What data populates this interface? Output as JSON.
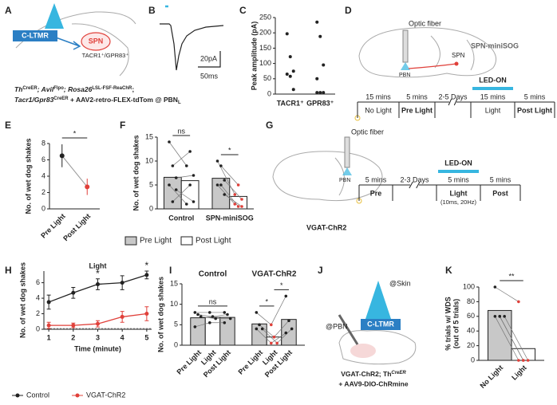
{
  "diagrams": {
    "A": {
      "label": "A",
      "neuron": "C-LTMR",
      "target": "SPN",
      "target_note": "TACR1⁺/GPR83⁺",
      "genotype": [
        [
          {
            "text": "Th"
          },
          {
            "text": "CreER",
            "sup": true
          },
          {
            "text": "; Avil"
          },
          {
            "text": "Flpo",
            "sup": true
          },
          {
            "text": "; Rosa26"
          },
          {
            "text": "LSL-FSF-ReaChR",
            "sup": true
          },
          {
            "text": ";"
          }
        ],
        [
          {
            "text": "Tacr1/Gpr83"
          },
          {
            "text": "CreER",
            "sup": true
          },
          {
            "text": " + AAV2-retro-FLEX-tdTom @ PBN"
          },
          {
            "text": "L",
            "sub": true
          }
        ]
      ]
    },
    "B": {
      "label": "B",
      "scale_y": "20pA",
      "scale_x": "50ms"
    },
    "D": {
      "label": "D",
      "fiber": "Optic fiber",
      "region": "PBN",
      "cell": "SPN",
      "line": "SPN-miniSOG",
      "led": "LED-ON",
      "led_index": 3,
      "timeline": [
        {
          "duration": "15 mins",
          "phase": "No Light"
        },
        {
          "duration": "5 mins",
          "phase": "Pre Light",
          "bold": true
        },
        {
          "duration": "2-5 Days"
        },
        {
          "duration": "15 mins",
          "phase": "Light"
        },
        {
          "duration": "5 mins",
          "phase": "Post Light",
          "bold": true
        }
      ]
    },
    "G": {
      "label": "G",
      "fiber": "Optic fiber",
      "region": "PBN",
      "line": "VGAT-ChR2",
      "led": "LED-ON",
      "led_index": 2,
      "timeline": [
        {
          "duration": "5 mins",
          "phase": "Pre",
          "bold": true
        },
        {
          "duration": "2-3 Days"
        },
        {
          "duration": "5 mins",
          "phase": "Light",
          "bold": true,
          "note": "(10ms, 20Hz)"
        },
        {
          "duration": "5 mins",
          "phase": "Post",
          "bold": true
        }
      ]
    },
    "J": {
      "label": "J",
      "skin": "@Skin",
      "neuron": "C-LTMR",
      "region": "@PBN",
      "genotype_line1": "VGAT-ChR2; Th",
      "genotype_sup": "CreER",
      "genotype_line2": "+ AAV9-DIO-ChRmine"
    }
  },
  "chart_data": [
    {
      "type": "strip",
      "label": "C",
      "y_label": "Peak amplitude (pA)",
      "categories": [
        "TACR1⁺",
        "GPR83⁺"
      ],
      "values": [
        [
          197,
          122,
          75,
          65,
          58,
          15
        ],
        [
          235,
          188,
          95,
          50,
          5,
          5,
          5
        ]
      ],
      "color": "#222222",
      "ylim": [
        0,
        250
      ],
      "yticks": [
        0,
        50,
        100,
        150,
        200,
        250
      ]
    },
    {
      "type": "line",
      "label": "E",
      "y_label": "No. of wet dog shakes",
      "categories": [
        "Pre Light",
        "Post Light"
      ],
      "values": [
        6.5,
        2.7
      ],
      "errors": [
        1.4,
        1.0
      ],
      "colors": [
        "#222222",
        "#e0403a"
      ],
      "ylim": [
        0,
        8
      ],
      "yticks": [
        0,
        2,
        4,
        6,
        8
      ],
      "significance": [
        {
          "pair": [
            0,
            1
          ],
          "label": "*"
        }
      ]
    },
    {
      "type": "bar",
      "label": "F",
      "y_label": "No. of wet dog shakes",
      "groups": [
        "Control",
        "SPN-miniSOG"
      ],
      "group_position": "bottom",
      "categories": [
        "Pre Light",
        "Post Light"
      ],
      "category_display": "legend",
      "fills": [
        "#c8c8c8",
        "#ffffff"
      ],
      "values": [
        [
          6.6,
          5.9
        ],
        [
          6.4,
          2.6
        ]
      ],
      "points": [
        [
          [
            14,
            9,
            6.5,
            5,
            1.5,
            4
          ],
          [
            9,
            12,
            7,
            1,
            5,
            1.5
          ]
        ],
        [
          [
            10,
            9,
            6,
            5,
            5,
            3
          ],
          [
            3,
            5,
            2,
            1,
            0.5,
            0.5
          ]
        ]
      ],
      "point_colors": [
        [
          "#222222",
          "#222222"
        ],
        [
          "#222222",
          "#e0403a"
        ]
      ],
      "ylim": [
        0,
        15
      ],
      "yticks": [
        0,
        5,
        10,
        15
      ],
      "significance": [
        {
          "group": 0,
          "pair": [
            0,
            1
          ],
          "label": "ns"
        },
        {
          "group": 1,
          "pair": [
            0,
            1
          ],
          "label": "*"
        }
      ]
    },
    {
      "type": "line",
      "label": "H",
      "title": "Light",
      "x_label": "Time (minute)",
      "y_label": "No. of wet dog shakes",
      "x": [
        1,
        2,
        3,
        4,
        5
      ],
      "xlim": [
        0.8,
        5.2
      ],
      "xticks": [
        1,
        2,
        3,
        4,
        5
      ],
      "ylim": [
        0,
        7.5
      ],
      "yticks": [
        0,
        2,
        4,
        6
      ],
      "series": [
        {
          "name": "Control",
          "color": "#222222",
          "values": [
            3.5,
            4.7,
            5.8,
            6.0,
            7.0
          ],
          "errors": [
            0.9,
            0.7,
            0.7,
            0.9,
            0.5
          ]
        },
        {
          "name": "VGAT-ChR2",
          "color": "#e0403a",
          "values": [
            0.5,
            0.5,
            0.7,
            1.6,
            2.0
          ],
          "errors": [
            0.4,
            0.3,
            0.4,
            0.7,
            0.9
          ]
        }
      ],
      "significance": [
        {
          "x": 3,
          "label": "*"
        },
        {
          "x": 5,
          "label": "*"
        }
      ],
      "legend": "bottom"
    },
    {
      "type": "bar",
      "label": "I",
      "y_label": "No. of wet dog shakes",
      "groups": [
        "Control",
        "VGAT-ChR2"
      ],
      "group_position": "top",
      "categories": [
        "Pre Light",
        "Light",
        "Post Light"
      ],
      "category_display": "rotated",
      "fills": [
        "#c8c8c8",
        "#ffffff",
        "#c8c8c8"
      ],
      "values": [
        [
          6.7,
          6.8,
          6.8
        ],
        [
          5.2,
          2.0,
          6.3
        ]
      ],
      "points": [
        [
          [
            8,
            7.5,
            7,
            4.5
          ],
          [
            8,
            7,
            6.5,
            5.5
          ],
          [
            8,
            7.5,
            6.5,
            5.5
          ]
        ],
        [
          [
            8,
            5,
            4,
            4
          ],
          [
            5,
            2,
            0.5,
            0.5
          ],
          [
            12,
            6,
            4,
            3
          ]
        ]
      ],
      "point_colors": [
        [
          "#222222",
          "#222222",
          "#222222"
        ],
        [
          "#222222",
          "#e0403a",
          "#222222"
        ]
      ],
      "ylim": [
        0,
        15
      ],
      "yticks": [
        0,
        5,
        10,
        15
      ],
      "significance": [
        {
          "group": 0,
          "pair": [
            0,
            2
          ],
          "label": "ns"
        },
        {
          "group": 1,
          "pair": [
            0,
            1
          ],
          "label": "*"
        },
        {
          "group": 1,
          "pair": [
            1,
            2
          ],
          "label": "*"
        }
      ]
    },
    {
      "type": "bar",
      "label": "K",
      "y_label": [
        "% trials w/ WDS",
        "(out of 5 trials)"
      ],
      "categories": [
        "No Light",
        "Light"
      ],
      "category_display": "rotated",
      "fills": [
        "#c8c8c8",
        "#ffffff"
      ],
      "values": [
        68,
        16
      ],
      "points": [
        [
          100,
          60,
          60,
          60,
          60
        ],
        [
          80,
          0,
          0,
          0,
          0
        ]
      ],
      "point_colors": [
        "#222222",
        "#e0403a"
      ],
      "ylim": [
        0,
        100
      ],
      "yticks": [
        0,
        20,
        40,
        60,
        80,
        100
      ],
      "significance": [
        {
          "pair": [
            0,
            1
          ],
          "label": "**"
        }
      ]
    }
  ]
}
